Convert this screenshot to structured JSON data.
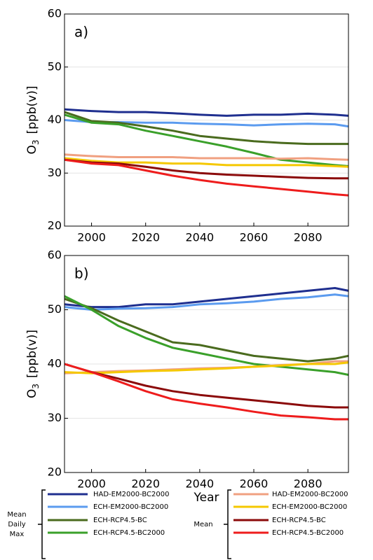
{
  "chart_data": [
    {
      "type": "line",
      "label": "a)",
      "ylabel": {
        "text": "O",
        "subscript": "3",
        "unit": "[ppb(v)]"
      },
      "x": [
        1990,
        2000,
        2010,
        2020,
        2030,
        2040,
        2050,
        2060,
        2070,
        2080,
        2090,
        2095
      ],
      "xlim": [
        1990,
        2095
      ],
      "xticks": [
        2000,
        2020,
        2040,
        2060,
        2080
      ],
      "ylim": [
        20,
        60
      ],
      "yticks": [
        20,
        30,
        40,
        50,
        60
      ],
      "grid": true,
      "series": [
        {
          "name": "HAD-EM2000-BC2000",
          "color": "#1f2f8f",
          "values": [
            42,
            41.7,
            41.5,
            41.5,
            41.3,
            41,
            40.8,
            41,
            41,
            41.2,
            41,
            40.8
          ]
        },
        {
          "name": "ECH-EM2000-BC2000",
          "color": "#5b9bef",
          "values": [
            40,
            39.6,
            39.6,
            39.5,
            39.5,
            39.3,
            39.2,
            39,
            39.2,
            39.3,
            39.2,
            38.8
          ]
        },
        {
          "name": "ECH-RCP4.5-BC",
          "color": "#4a6b1e",
          "values": [
            41.5,
            39.8,
            39.5,
            38.8,
            38,
            37,
            36.5,
            36,
            35.7,
            35.5,
            35.5,
            35.5
          ]
        },
        {
          "name": "ECH-RCP4.5-BC2000",
          "color": "#3aa02a",
          "values": [
            41,
            39.5,
            39.2,
            38,
            37,
            36,
            35,
            33.8,
            32.5,
            32,
            31.5,
            31.3
          ]
        },
        {
          "name": "HAD-EM2000-BC2000",
          "color": "#f0a080",
          "values": [
            33.5,
            33.2,
            33,
            33,
            33,
            32.8,
            32.8,
            32.8,
            32.7,
            32.8,
            32.6,
            32.5
          ]
        },
        {
          "name": "ECH-EM2000-BC2000",
          "color": "#f5c800",
          "values": [
            32.8,
            32.3,
            32,
            32,
            31.8,
            31.8,
            31.5,
            31.5,
            31.5,
            31.5,
            31.3,
            31.2
          ]
        },
        {
          "name": "ECH-RCP4.5-BC",
          "color": "#8b0a0a",
          "values": [
            32.5,
            32,
            31.8,
            31.2,
            30.5,
            30,
            29.7,
            29.5,
            29.3,
            29.1,
            29,
            29
          ]
        },
        {
          "name": "ECH-RCP4.5-BC2000",
          "color": "#ee1c1c",
          "values": [
            32.5,
            31.8,
            31.5,
            30.5,
            29.5,
            28.7,
            28,
            27.5,
            27,
            26.5,
            26,
            25.8
          ]
        }
      ]
    },
    {
      "type": "line",
      "label": "b)",
      "xlabel": "Year",
      "ylabel": {
        "text": "O",
        "subscript": "3",
        "unit": "[ppb(v)]"
      },
      "x": [
        1990,
        2000,
        2010,
        2020,
        2030,
        2040,
        2050,
        2060,
        2070,
        2080,
        2090,
        2095
      ],
      "xlim": [
        1990,
        2095
      ],
      "xticks": [
        2000,
        2020,
        2040,
        2060,
        2080
      ],
      "ylim": [
        20,
        60
      ],
      "yticks": [
        20,
        30,
        40,
        50,
        60
      ],
      "grid": true,
      "series": [
        {
          "name": "HAD-EM2000-BC2000",
          "color": "#1f2f8f",
          "values": [
            51,
            50.5,
            50.5,
            51,
            51,
            51.5,
            52,
            52.5,
            53,
            53.5,
            54,
            53.5
          ]
        },
        {
          "name": "ECH-EM2000-BC2000",
          "color": "#5b9bef",
          "values": [
            50.5,
            50,
            50.2,
            50.3,
            50.5,
            51,
            51.2,
            51.5,
            52,
            52.3,
            52.8,
            52.5
          ]
        },
        {
          "name": "ECH-RCP4.5-BC",
          "color": "#4a6b1e",
          "values": [
            52,
            50.3,
            48,
            46,
            44,
            43.5,
            42.5,
            41.5,
            41,
            40.5,
            41,
            41.5
          ]
        },
        {
          "name": "ECH-RCP4.5-BC2000",
          "color": "#3aa02a",
          "values": [
            52.5,
            50,
            47,
            44.8,
            43,
            42,
            41,
            40,
            39.5,
            39,
            38.5,
            38
          ]
        },
        {
          "name": "HAD-EM2000-BC2000",
          "color": "#f0a080",
          "values": [
            38.3,
            38.5,
            38.7,
            38.8,
            39,
            39.2,
            39.3,
            39.5,
            39.8,
            40,
            40.5,
            40.5
          ]
        },
        {
          "name": "ECH-EM2000-BC2000",
          "color": "#f5c800",
          "values": [
            38.5,
            38.3,
            38.5,
            38.7,
            38.8,
            39,
            39.2,
            39.5,
            39.7,
            40,
            40,
            40.3
          ]
        },
        {
          "name": "ECH-RCP4.5-BC",
          "color": "#8b0a0a",
          "values": [
            40,
            38.5,
            37.3,
            36,
            35,
            34.3,
            33.8,
            33.3,
            32.8,
            32.3,
            32,
            32
          ]
        },
        {
          "name": "ECH-RCP4.5-BC2000",
          "color": "#ee1c1c",
          "values": [
            40,
            38.5,
            36.8,
            35,
            33.5,
            32.7,
            32,
            31.2,
            30.5,
            30.2,
            29.8,
            29.8
          ]
        }
      ]
    }
  ],
  "legend": {
    "groups": [
      {
        "label": [
          "Mean",
          "Daily",
          "Max"
        ]
      },
      {
        "label": [
          "Mean"
        ]
      }
    ]
  }
}
